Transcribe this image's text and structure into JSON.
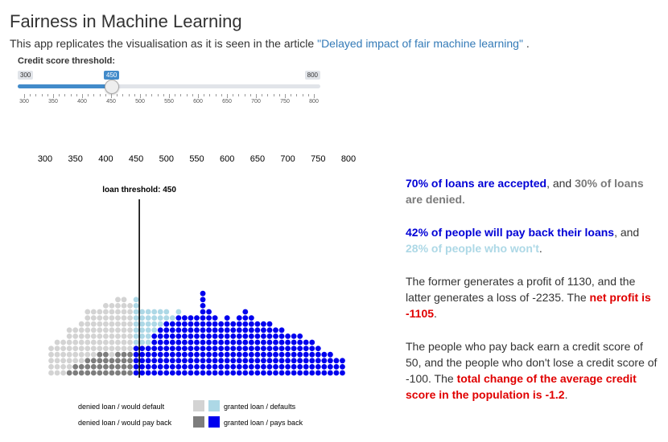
{
  "title": "Fairness in Machine Learning",
  "intro": {
    "text_before": "This app replicates the visualisation as it is seen in the article ",
    "link_text": "\"Delayed impact of fair machine learning\"",
    "text_after": " ."
  },
  "slider": {
    "label": "Credit score threshold:",
    "min": 300,
    "max": 800,
    "value": 450,
    "min_label": "300",
    "max_label": "800",
    "value_label": "450",
    "grid_labels": [
      "300",
      "350",
      "400",
      "450",
      "500",
      "550",
      "600",
      "650",
      "700",
      "750",
      "800"
    ]
  },
  "chart_data": {
    "type": "scatter",
    "title": "",
    "xlabel": "",
    "ylabel": "",
    "x_tick_labels": [
      "300",
      "350",
      "400",
      "450",
      "500",
      "550",
      "600",
      "650",
      "700",
      "750",
      "800"
    ],
    "threshold_label": "loan threshold: 450",
    "threshold": 450,
    "score_min": 300,
    "score_max": 800,
    "columns": [
      {
        "score": 310,
        "default": 5,
        "pay": 0
      },
      {
        "score": 320,
        "default": 6,
        "pay": 0
      },
      {
        "score": 330,
        "default": 6,
        "pay": 0
      },
      {
        "score": 340,
        "default": 7,
        "pay": 1
      },
      {
        "score": 350,
        "default": 6,
        "pay": 2
      },
      {
        "score": 360,
        "default": 7,
        "pay": 2
      },
      {
        "score": 370,
        "default": 8,
        "pay": 3
      },
      {
        "score": 380,
        "default": 8,
        "pay": 3
      },
      {
        "score": 390,
        "default": 7,
        "pay": 4
      },
      {
        "score": 400,
        "default": 8,
        "pay": 4
      },
      {
        "score": 410,
        "default": 9,
        "pay": 3
      },
      {
        "score": 420,
        "default": 9,
        "pay": 4
      },
      {
        "score": 430,
        "default": 9,
        "pay": 4
      },
      {
        "score": 440,
        "default": 8,
        "pay": 4
      },
      {
        "score": 450,
        "default": 8,
        "pay": 5
      },
      {
        "score": 460,
        "default": 6,
        "pay": 5
      },
      {
        "score": 470,
        "default": 6,
        "pay": 5
      },
      {
        "score": 480,
        "default": 4,
        "pay": 7
      },
      {
        "score": 490,
        "default": 3,
        "pay": 8
      },
      {
        "score": 500,
        "default": 2,
        "pay": 9
      },
      {
        "score": 510,
        "default": 1,
        "pay": 9
      },
      {
        "score": 520,
        "default": 1,
        "pay": 10
      },
      {
        "score": 530,
        "default": 0,
        "pay": 10
      },
      {
        "score": 540,
        "default": 0,
        "pay": 10
      },
      {
        "score": 550,
        "default": 0,
        "pay": 10
      },
      {
        "score": 560,
        "default": 0,
        "pay": 14
      },
      {
        "score": 570,
        "default": 0,
        "pay": 11
      },
      {
        "score": 580,
        "default": 0,
        "pay": 10
      },
      {
        "score": 590,
        "default": 0,
        "pay": 9
      },
      {
        "score": 600,
        "default": 0,
        "pay": 10
      },
      {
        "score": 610,
        "default": 0,
        "pay": 9
      },
      {
        "score": 620,
        "default": 0,
        "pay": 10
      },
      {
        "score": 630,
        "default": 0,
        "pay": 11
      },
      {
        "score": 640,
        "default": 0,
        "pay": 10
      },
      {
        "score": 650,
        "default": 0,
        "pay": 9
      },
      {
        "score": 660,
        "default": 0,
        "pay": 9
      },
      {
        "score": 670,
        "default": 0,
        "pay": 9
      },
      {
        "score": 680,
        "default": 0,
        "pay": 8
      },
      {
        "score": 690,
        "default": 0,
        "pay": 8
      },
      {
        "score": 700,
        "default": 0,
        "pay": 7
      },
      {
        "score": 710,
        "default": 0,
        "pay": 7
      },
      {
        "score": 720,
        "default": 0,
        "pay": 7
      },
      {
        "score": 730,
        "default": 0,
        "pay": 6
      },
      {
        "score": 740,
        "default": 0,
        "pay": 6
      },
      {
        "score": 750,
        "default": 0,
        "pay": 5
      },
      {
        "score": 760,
        "default": 0,
        "pay": 4
      },
      {
        "score": 770,
        "default": 0,
        "pay": 4
      },
      {
        "score": 780,
        "default": 0,
        "pay": 3
      },
      {
        "score": 790,
        "default": 0,
        "pay": 3
      }
    ],
    "legend": [
      {
        "label": "denied loan / would default",
        "color": "#d3d3d3"
      },
      {
        "label": "denied loan / would pay back",
        "color": "#7d7d7d"
      },
      {
        "label": "granted loan / defaults",
        "color": "#add8e6"
      },
      {
        "label": "granted loan / pays back",
        "color": "#0000ee"
      }
    ],
    "colors": {
      "denied_default": "#d3d3d3",
      "denied_pay": "#7d7d7d",
      "granted_default": "#add8e6",
      "granted_pay": "#0000ee"
    }
  },
  "summary": {
    "p1": {
      "a": "70% of loans are accepted",
      "b": ", and ",
      "c": "30% of loans are denied",
      "d": "."
    },
    "p2": {
      "a": "42% of people will pay back their loans",
      "b": ", and ",
      "c": "28% of people who won't",
      "d": "."
    },
    "p3": {
      "a": "The former generates a profit of 1130, and the latter generates a loss of -2235. The ",
      "b": "net profit is -1105",
      "c": "."
    },
    "p4": {
      "a": "The people who pay back earn a credit score of 50, and the people who don't lose a credit score of -100. The ",
      "b": "total change of the average credit score in the population is -1.2",
      "c": "."
    }
  }
}
